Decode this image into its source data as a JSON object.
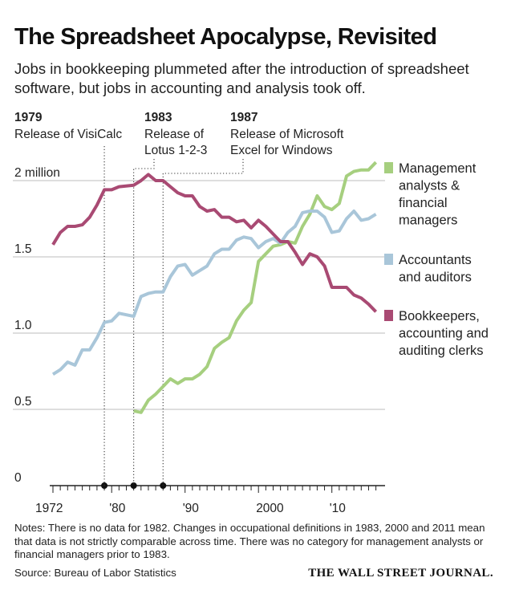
{
  "header": {
    "title": "The Spreadsheet Apocalypse, Revisited",
    "subtitle": "Jobs in bookkeeping plummeted after the introduction of spreadsheet software, but jobs in accounting and analysis took off."
  },
  "chart_data": {
    "type": "line",
    "ylim": [
      0,
      2.1
    ],
    "xlim": [
      1972,
      2016
    ],
    "y_ticks": [
      {
        "v": 0,
        "label": "0"
      },
      {
        "v": 0.5,
        "label": "0.5"
      },
      {
        "v": 1.0,
        "label": "1.0"
      },
      {
        "v": 1.5,
        "label": "1.5"
      },
      {
        "v": 2.0,
        "label": "2 million"
      }
    ],
    "x_tick_labels": [
      {
        "v": 1972,
        "label": "1972"
      },
      {
        "v": 1980,
        "label": "'80"
      },
      {
        "v": 1990,
        "label": "'90"
      },
      {
        "v": 2000,
        "label": "2000"
      },
      {
        "v": 2010,
        "label": "'10"
      }
    ],
    "grid": "horizontal",
    "legend_position": "right",
    "events": [
      {
        "year_label": "1979",
        "text": "Release of VisiCalc",
        "x": 1979
      },
      {
        "year_label": "1983",
        "text": "Release of Lotus 1-2-3",
        "x": 1983
      },
      {
        "year_label": "1987",
        "text": "Release of Microsoft Excel for Windows",
        "x": 1987
      }
    ],
    "series": [
      {
        "name": "Management analysts & financial managers",
        "color": "#a6cf7f",
        "x": [
          1983,
          1984,
          1985,
          1986,
          1987,
          1988,
          1989,
          1990,
          1991,
          1992,
          1993,
          1994,
          1995,
          1996,
          1997,
          1998,
          1999,
          2000,
          2001,
          2002,
          2003,
          2004,
          2005,
          2006,
          2007,
          2008,
          2009,
          2010,
          2011,
          2012,
          2013,
          2014,
          2015,
          2016
        ],
        "y": [
          0.49,
          0.48,
          0.56,
          0.6,
          0.65,
          0.7,
          0.67,
          0.7,
          0.7,
          0.73,
          0.78,
          0.9,
          0.94,
          0.97,
          1.08,
          1.15,
          1.2,
          1.47,
          1.52,
          1.57,
          1.58,
          1.6,
          1.59,
          1.7,
          1.78,
          1.9,
          1.83,
          1.81,
          1.85,
          2.03,
          2.06,
          2.07,
          2.07,
          2.12
        ]
      },
      {
        "name": "Accountants and auditors",
        "color": "#a9c6d9",
        "x": [
          1972,
          1973,
          1974,
          1975,
          1976,
          1977,
          1978,
          1979,
          1980,
          1981,
          1983,
          1984,
          1985,
          1986,
          1987,
          1988,
          1989,
          1990,
          1991,
          1992,
          1993,
          1994,
          1995,
          1996,
          1997,
          1998,
          1999,
          2000,
          2001,
          2002,
          2003,
          2004,
          2005,
          2006,
          2007,
          2008,
          2009,
          2010,
          2011,
          2012,
          2013,
          2014,
          2015,
          2016
        ],
        "y": [
          0.73,
          0.76,
          0.81,
          0.79,
          0.89,
          0.89,
          0.97,
          1.07,
          1.08,
          1.13,
          1.11,
          1.24,
          1.26,
          1.27,
          1.27,
          1.37,
          1.44,
          1.45,
          1.38,
          1.41,
          1.44,
          1.52,
          1.55,
          1.55,
          1.61,
          1.63,
          1.62,
          1.56,
          1.6,
          1.62,
          1.59,
          1.66,
          1.7,
          1.79,
          1.8,
          1.8,
          1.76,
          1.66,
          1.67,
          1.75,
          1.8,
          1.74,
          1.75,
          1.78
        ]
      },
      {
        "name": "Bookkeepers, accounting and auditing clerks",
        "color": "#a94a73",
        "x": [
          1972,
          1973,
          1974,
          1975,
          1976,
          1977,
          1978,
          1979,
          1980,
          1981,
          1983,
          1984,
          1985,
          1986,
          1987,
          1988,
          1989,
          1990,
          1991,
          1992,
          1993,
          1994,
          1995,
          1996,
          1997,
          1998,
          1999,
          2000,
          2001,
          2002,
          2003,
          2004,
          2005,
          2006,
          2007,
          2008,
          2009,
          2010,
          2011,
          2012,
          2013,
          2014,
          2015,
          2016
        ],
        "y": [
          1.58,
          1.66,
          1.7,
          1.7,
          1.71,
          1.76,
          1.84,
          1.94,
          1.94,
          1.96,
          1.97,
          2.0,
          2.04,
          2.0,
          2.0,
          1.96,
          1.92,
          1.9,
          1.9,
          1.83,
          1.8,
          1.81,
          1.76,
          1.76,
          1.73,
          1.74,
          1.69,
          1.74,
          1.7,
          1.65,
          1.6,
          1.6,
          1.53,
          1.45,
          1.52,
          1.5,
          1.44,
          1.3,
          1.3,
          1.3,
          1.25,
          1.23,
          1.19,
          1.14
        ]
      }
    ]
  },
  "footer": {
    "notes": "Notes: There is no data for 1982. Changes in occupational definitions in 1983, 2000 and 2011 mean that data is not strictly comparable across time. There was no category for management analysts or financial managers prior to 1983.",
    "source": "Source: Bureau of Labor Statistics",
    "brand": "THE WALL STREET JOURNAL."
  }
}
